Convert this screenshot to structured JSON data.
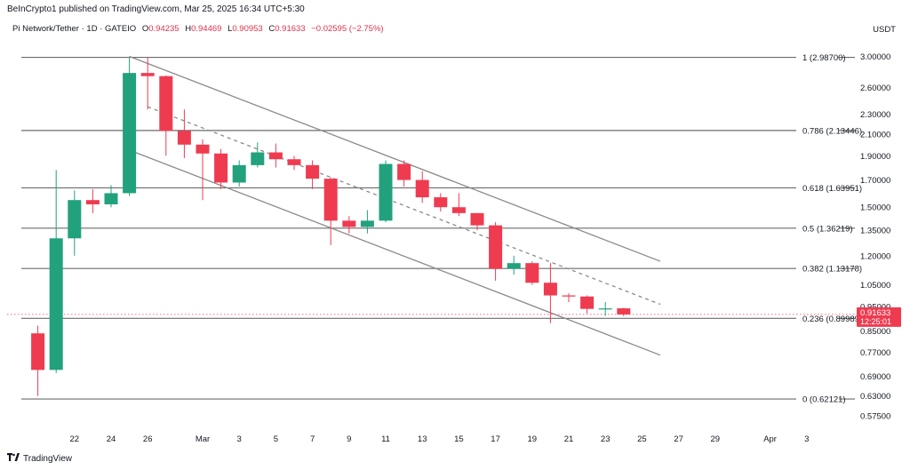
{
  "header": {
    "published": "BeInCrypto1 published on TradingView.com, Mar 25, 2025 16:34 UTC+5:30",
    "symbol": "Pi Network/Tether · 1D · GATEIO",
    "o_label": "O",
    "o_value": "0.94235",
    "h_label": "H",
    "h_value": "0.94469",
    "l_label": "L",
    "l_value": "0.90953",
    "c_label": "C",
    "c_value": "0.91633",
    "change": "−0.02595 (−2.75%)",
    "unit": "USDT"
  },
  "footer": {
    "brand": "TradingView",
    "brand_icon": "tradingview-logo-icon"
  },
  "colors": {
    "up": "#22a17d",
    "down": "#ef3b50",
    "channel": "#8a8a8a",
    "fib": "#6b6b6b",
    "price": "#ef3b50"
  },
  "chart_data": {
    "type": "candlestick",
    "y_axis": {
      "scale": "log",
      "range": [
        0.55,
        3.2
      ],
      "ticks": [
        "3.00000",
        "2.60000",
        "2.30000",
        "2.10000",
        "1.90000",
        "1.70000",
        "1.50000",
        "1.35000",
        "1.20000",
        "1.05000",
        "0.95000",
        "0.85000",
        "0.77000",
        "0.69000",
        "0.63000",
        "0.57500"
      ]
    },
    "x_axis": {
      "ticks": [
        "22",
        "24",
        "26",
        "Mar",
        "3",
        "5",
        "7",
        "9",
        "11",
        "13",
        "15",
        "17",
        "19",
        "21",
        "23",
        "25",
        "27",
        "29",
        "Apr",
        "3"
      ]
    },
    "candles": [
      {
        "date": "2025-02-20",
        "o": 0.84,
        "h": 0.87,
        "l": 0.63,
        "c": 0.71
      },
      {
        "date": "2025-02-21",
        "o": 0.71,
        "h": 1.78,
        "l": 0.7,
        "c": 1.3
      },
      {
        "date": "2025-02-22",
        "o": 1.3,
        "h": 1.62,
        "l": 1.2,
        "c": 1.55
      },
      {
        "date": "2025-02-23",
        "o": 1.55,
        "h": 1.63,
        "l": 1.46,
        "c": 1.52
      },
      {
        "date": "2025-02-24",
        "o": 1.52,
        "h": 1.66,
        "l": 1.5,
        "c": 1.6
      },
      {
        "date": "2025-02-25",
        "o": 1.6,
        "h": 2.98,
        "l": 1.58,
        "c": 2.78
      },
      {
        "date": "2025-02-26",
        "o": 2.78,
        "h": 2.98,
        "l": 2.35,
        "c": 2.74
      },
      {
        "date": "2025-02-27",
        "o": 2.74,
        "h": 2.75,
        "l": 1.9,
        "c": 2.13
      },
      {
        "date": "2025-02-28",
        "o": 2.13,
        "h": 2.35,
        "l": 1.88,
        "c": 2.0
      },
      {
        "date": "2025-03-01",
        "o": 2.0,
        "h": 2.05,
        "l": 1.55,
        "c": 1.92
      },
      {
        "date": "2025-03-02",
        "o": 1.92,
        "h": 1.96,
        "l": 1.63,
        "c": 1.68
      },
      {
        "date": "2025-03-03",
        "o": 1.68,
        "h": 1.86,
        "l": 1.65,
        "c": 1.82
      },
      {
        "date": "2025-03-04",
        "o": 1.82,
        "h": 2.02,
        "l": 1.8,
        "c": 1.93
      },
      {
        "date": "2025-03-05",
        "o": 1.93,
        "h": 2.01,
        "l": 1.8,
        "c": 1.87
      },
      {
        "date": "2025-03-06",
        "o": 1.87,
        "h": 1.9,
        "l": 1.78,
        "c": 1.82
      },
      {
        "date": "2025-03-07",
        "o": 1.82,
        "h": 1.86,
        "l": 1.63,
        "c": 1.71
      },
      {
        "date": "2025-03-08",
        "o": 1.71,
        "h": 1.72,
        "l": 1.26,
        "c": 1.41
      },
      {
        "date": "2025-03-09",
        "o": 1.41,
        "h": 1.44,
        "l": 1.33,
        "c": 1.37
      },
      {
        "date": "2025-03-10",
        "o": 1.37,
        "h": 1.48,
        "l": 1.33,
        "c": 1.41
      },
      {
        "date": "2025-03-11",
        "o": 1.41,
        "h": 1.86,
        "l": 1.4,
        "c": 1.83
      },
      {
        "date": "2025-03-12",
        "o": 1.83,
        "h": 1.86,
        "l": 1.65,
        "c": 1.7
      },
      {
        "date": "2025-03-13",
        "o": 1.7,
        "h": 1.77,
        "l": 1.53,
        "c": 1.57
      },
      {
        "date": "2025-03-14",
        "o": 1.57,
        "h": 1.6,
        "l": 1.47,
        "c": 1.5
      },
      {
        "date": "2025-03-15",
        "o": 1.5,
        "h": 1.6,
        "l": 1.44,
        "c": 1.46
      },
      {
        "date": "2025-03-16",
        "o": 1.46,
        "h": 1.46,
        "l": 1.35,
        "c": 1.38
      },
      {
        "date": "2025-03-17",
        "o": 1.38,
        "h": 1.4,
        "l": 1.07,
        "c": 1.13
      },
      {
        "date": "2025-03-18",
        "o": 1.13,
        "h": 1.2,
        "l": 1.1,
        "c": 1.16
      },
      {
        "date": "2025-03-19",
        "o": 1.16,
        "h": 1.17,
        "l": 1.05,
        "c": 1.06
      },
      {
        "date": "2025-03-20",
        "o": 1.06,
        "h": 1.16,
        "l": 0.88,
        "c": 1.0
      },
      {
        "date": "2025-03-21",
        "o": 1.0,
        "h": 1.01,
        "l": 0.97,
        "c": 0.995
      },
      {
        "date": "2025-03-22",
        "o": 0.995,
        "h": 1.0,
        "l": 0.92,
        "c": 0.94
      },
      {
        "date": "2025-03-23",
        "o": 0.94,
        "h": 0.97,
        "l": 0.91,
        "c": 0.942
      },
      {
        "date": "2025-03-24",
        "o": 0.94235,
        "h": 0.94469,
        "l": 0.90953,
        "c": 0.91633
      }
    ],
    "fib_levels": [
      {
        "label": "1 (2.98700)",
        "value": 2.987
      },
      {
        "label": "0.786 (2.13446)",
        "value": 2.13446
      },
      {
        "label": "0.618 (1.63951)",
        "value": 1.63951
      },
      {
        "label": "0.5 (1.36219)",
        "value": 1.36219
      },
      {
        "label": "0.382 (1.13178)",
        "value": 1.13178
      },
      {
        "label": "0.236 (0.89989)",
        "value": 0.89989
      },
      {
        "label": "0 (0.62121)",
        "value": 0.62121
      }
    ],
    "channel": {
      "upper": [
        {
          "date": "2025-02-25",
          "value": 3.0
        },
        {
          "date": "2025-03-26",
          "value": 1.17
        }
      ],
      "middle": [
        {
          "date": "2025-02-26",
          "value": 2.38
        },
        {
          "date": "2025-03-26",
          "value": 0.96
        }
      ],
      "lower": [
        {
          "date": "2025-02-25",
          "value": 1.95
        },
        {
          "date": "2025-03-26",
          "value": 0.76
        }
      ]
    },
    "current_price": {
      "value": 0.91633,
      "label": "0.91633",
      "countdown": "12:25:01"
    }
  }
}
